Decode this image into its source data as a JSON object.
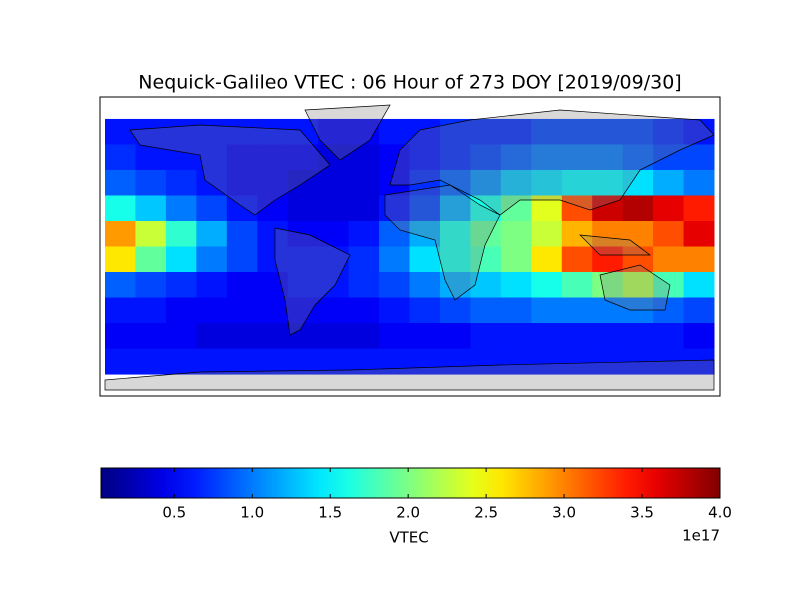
{
  "chart_data": {
    "type": "heatmap",
    "title": "Nequick-Galileo VTEC : 06 Hour of 273 DOY [2019/09/30]",
    "colormap": "jet",
    "x": [
      -171,
      -153,
      -135,
      -117,
      -99,
      -81,
      -63,
      -45,
      -27,
      -9,
      9,
      27,
      45,
      63,
      81,
      99,
      117,
      135,
      153,
      171
    ],
    "y": [
      72,
      56,
      40,
      24,
      8,
      -8,
      -24,
      -40,
      -56,
      -72
    ],
    "xlim": [
      -180,
      180
    ],
    "ylim": [
      -90,
      90
    ],
    "values": [
      [
        0.6,
        0.6,
        0.6,
        0.6,
        0.6,
        0.6,
        0.6,
        0.5,
        0.5,
        0.6,
        0.6,
        0.7,
        0.7,
        0.7,
        0.8,
        0.8,
        0.8,
        0.8,
        0.7,
        0.6
      ],
      [
        0.7,
        0.6,
        0.6,
        0.6,
        0.5,
        0.5,
        0.5,
        0.4,
        0.4,
        0.5,
        0.6,
        0.7,
        0.8,
        0.9,
        1.0,
        1.0,
        1.0,
        0.9,
        0.8,
        0.8
      ],
      [
        0.9,
        0.8,
        0.7,
        0.6,
        0.5,
        0.5,
        0.4,
        0.4,
        0.4,
        0.5,
        0.7,
        0.9,
        1.1,
        1.3,
        1.4,
        1.5,
        1.5,
        1.4,
        1.2,
        1.0
      ],
      [
        1.6,
        1.3,
        1.0,
        0.8,
        0.6,
        0.5,
        0.4,
        0.4,
        0.4,
        0.6,
        0.8,
        1.2,
        1.6,
        1.9,
        2.4,
        3.2,
        3.7,
        3.8,
        3.6,
        3.4
      ],
      [
        2.9,
        2.3,
        1.7,
        1.2,
        0.8,
        0.6,
        0.5,
        0.5,
        0.6,
        0.9,
        1.2,
        1.6,
        1.9,
        2.0,
        2.3,
        2.8,
        3.0,
        3.0,
        3.2,
        3.6
      ],
      [
        2.6,
        1.9,
        1.4,
        1.0,
        0.8,
        0.6,
        0.6,
        0.6,
        0.7,
        1.0,
        1.4,
        1.6,
        1.8,
        2.0,
        2.6,
        3.2,
        3.4,
        3.2,
        3.0,
        3.0
      ],
      [
        0.9,
        0.8,
        0.7,
        0.6,
        0.5,
        0.5,
        0.6,
        0.6,
        0.7,
        0.8,
        1.0,
        1.2,
        1.3,
        1.4,
        1.6,
        1.8,
        2.0,
        2.2,
        1.8,
        1.4
      ],
      [
        0.6,
        0.6,
        0.5,
        0.5,
        0.5,
        0.5,
        0.5,
        0.5,
        0.5,
        0.6,
        0.7,
        0.8,
        0.9,
        0.9,
        1.0,
        1.0,
        1.0,
        1.0,
        0.9,
        0.8
      ],
      [
        0.5,
        0.5,
        0.5,
        0.4,
        0.4,
        0.4,
        0.4,
        0.4,
        0.4,
        0.5,
        0.5,
        0.5,
        0.6,
        0.6,
        0.6,
        0.6,
        0.6,
        0.6,
        0.6,
        0.5
      ],
      [
        0.6,
        0.6,
        0.6,
        0.6,
        0.6,
        0.6,
        0.6,
        0.6,
        0.6,
        0.6,
        0.6,
        0.6,
        0.6,
        0.6,
        0.6,
        0.6,
        0.6,
        0.6,
        0.6,
        0.6
      ]
    ],
    "colorbar_lim": [
      0.03,
      4.0
    ],
    "colorbar_ticks": [
      0.5,
      {
        "value": 1,
        "label": "1.0"
      },
      1.5,
      {
        "value": 2,
        "label": "2.0"
      },
      2.5,
      {
        "value": 3,
        "label": "3.0"
      },
      3.5,
      {
        "value": 4,
        "label": "4.0"
      }
    ],
    "colorbar_label": "VTEC",
    "colorbar_offset": "1e17"
  }
}
